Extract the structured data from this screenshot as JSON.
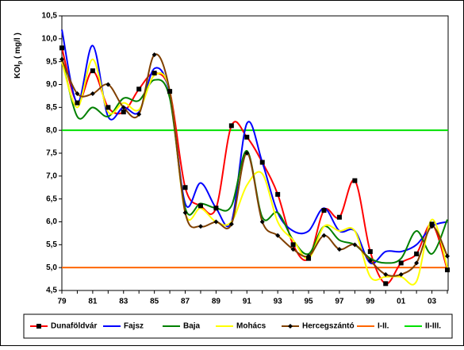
{
  "chart_data": {
    "type": "line",
    "y_label": {
      "main": "KOI",
      "sub": "p",
      "unit": " ( mg/l )"
    },
    "categories": [
      "79",
      null,
      "81",
      null,
      "83",
      null,
      "85",
      null,
      "87",
      null,
      "89",
      null,
      "91",
      null,
      "93",
      null,
      "95",
      null,
      "97",
      null,
      "99",
      null,
      "01",
      null,
      "03",
      null
    ],
    "ylim": [
      4.5,
      10.5
    ],
    "yticks": [
      {
        "value": 4.5,
        "label": "4,5"
      },
      {
        "value": 5,
        "label": "5,0"
      },
      {
        "value": 5.5,
        "label": "5,5"
      },
      {
        "value": 6,
        "label": "6,0"
      },
      {
        "value": 6.5,
        "label": "6,5"
      },
      {
        "value": 7,
        "label": "7,0"
      },
      {
        "value": 7.5,
        "label": "7,5"
      },
      {
        "value": 8,
        "label": "8,0"
      },
      {
        "value": 8.5,
        "label": "8,5"
      },
      {
        "value": 9,
        "label": "9,0"
      },
      {
        "value": 9.5,
        "label": "9,5"
      },
      {
        "value": 10,
        "label": "10,0"
      },
      {
        "value": 10.5,
        "label": "10,5"
      }
    ],
    "series": [
      {
        "name": "Dunaföldvár",
        "color": "#ff0000",
        "marker": "square",
        "values": [
          9.8,
          8.6,
          9.3,
          8.5,
          8.4,
          8.9,
          9.25,
          8.85,
          6.75,
          6.35,
          6.3,
          8.1,
          7.85,
          7.3,
          6.6,
          5.5,
          5.2,
          6.25,
          6.1,
          6.9,
          5.35,
          4.65,
          5.1,
          5.3,
          5.95,
          4.95
        ]
      },
      {
        "name": "Fajsz",
        "color": "#0000ff",
        "marker": "none",
        "values": [
          10.2,
          8.6,
          9.85,
          8.3,
          8.5,
          8.4,
          9.35,
          8.8,
          6.4,
          6.85,
          6.3,
          6.0,
          8.15,
          7.3,
          6.2,
          5.8,
          5.8,
          6.3,
          5.8,
          5.8,
          5.1,
          5.35,
          5.35,
          5.5,
          5.9,
          6.0
        ]
      },
      {
        "name": "Baja",
        "color": "#008000",
        "marker": "none",
        "values": [
          9.6,
          8.3,
          8.5,
          8.3,
          8.7,
          8.65,
          9.1,
          8.7,
          6.3,
          6.4,
          6.3,
          6.35,
          7.55,
          6.1,
          6.2,
          5.6,
          5.3,
          5.9,
          5.6,
          5.5,
          5.2,
          5.1,
          5.2,
          5.8,
          5.3,
          6.05
        ]
      },
      {
        "name": "Mohács",
        "color": "#ffff00",
        "marker": "none",
        "values": [
          9.5,
          8.5,
          9.55,
          8.4,
          8.6,
          8.45,
          9.2,
          8.85,
          6.2,
          6.3,
          6.0,
          6.0,
          6.8,
          7.05,
          6.0,
          5.6,
          5.2,
          5.9,
          5.8,
          5.8,
          4.8,
          4.8,
          4.8,
          4.7,
          6.05,
          5.0
        ]
      },
      {
        "name": "Hercegszántó",
        "color": "#804000",
        "marker": "diamond",
        "values": [
          9.55,
          8.8,
          8.8,
          9.0,
          8.5,
          8.35,
          9.65,
          8.85,
          6.2,
          5.9,
          6.0,
          5.95,
          7.5,
          6.0,
          5.7,
          5.4,
          5.25,
          5.7,
          5.4,
          5.5,
          5.15,
          4.85,
          4.85,
          5.1,
          5.9,
          5.25
        ]
      }
    ],
    "reference_lines": [
      {
        "name": "I-II.",
        "color": "#ff6600",
        "value": 5.0
      },
      {
        "name": "II-III.",
        "color": "#00e000",
        "value": 8.0
      }
    ]
  }
}
